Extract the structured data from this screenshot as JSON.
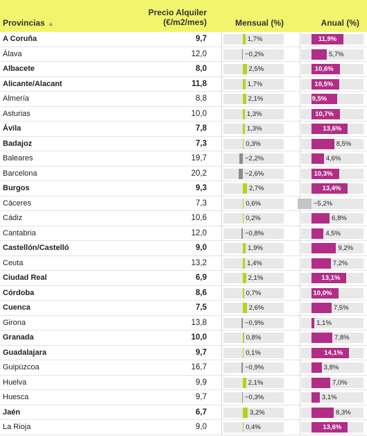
{
  "header": {
    "provinces": "Provincias",
    "sort_icon": "▲",
    "price_line1": "Precio Alquiler",
    "price_line2": "(€/m2/mes)",
    "monthly": "Mensual (%)",
    "annual": "Anual (%)"
  },
  "colors": {
    "header_bg": "#f2f56c",
    "monthly_positive": "#b7d21c",
    "monthly_negative": "#8c8c8c",
    "annual_positive": "#b22d86",
    "annual_negative": "#c4c4c4",
    "track": "#e8e8e8"
  },
  "chart_data": {
    "type": "table",
    "columns": [
      "Provincias",
      "Precio Alquiler (€/m2/mes)",
      "Mensual (%)",
      "Anual (%)"
    ],
    "rows": [
      {
        "province": "A Coruña",
        "price": "9,7",
        "monthly": 1.7,
        "monthly_label": "1,7%",
        "annual": 11.9,
        "annual_label": "11,9%",
        "bold": true
      },
      {
        "province": "Álava",
        "price": "12,0",
        "monthly": -0.2,
        "monthly_label": "−0,2%",
        "annual": 5.7,
        "annual_label": "5,7%",
        "bold": false
      },
      {
        "province": "Albacete",
        "price": "8,0",
        "monthly": 2.5,
        "monthly_label": "2,5%",
        "annual": 10.6,
        "annual_label": "10,6%",
        "bold": true
      },
      {
        "province": "Alicante/Alacant",
        "price": "11,8",
        "monthly": 1.7,
        "monthly_label": "1,7%",
        "annual": 10.5,
        "annual_label": "10,5%",
        "bold": true
      },
      {
        "province": "Almería",
        "price": "8,8",
        "monthly": 2.1,
        "monthly_label": "2,1%",
        "annual": 9.5,
        "annual_label": "9,5%",
        "bold": false
      },
      {
        "province": "Asturias",
        "price": "10,0",
        "monthly": 1.3,
        "monthly_label": "1,3%",
        "annual": 10.7,
        "annual_label": "10,7%",
        "bold": false
      },
      {
        "province": "Ávila",
        "price": "7,8",
        "monthly": 1.3,
        "monthly_label": "1,3%",
        "annual": 13.6,
        "annual_label": "13,6%",
        "bold": true
      },
      {
        "province": "Badajoz",
        "price": "7,3",
        "monthly": 0.3,
        "monthly_label": "0,3%",
        "annual": 8.5,
        "annual_label": "8,5%",
        "bold": true
      },
      {
        "province": "Baleares",
        "price": "19,7",
        "monthly": -2.2,
        "monthly_label": "−2,2%",
        "annual": 4.6,
        "annual_label": "4,6%",
        "bold": false
      },
      {
        "province": "Barcelona",
        "price": "20,2",
        "monthly": -2.6,
        "monthly_label": "−2,6%",
        "annual": 10.3,
        "annual_label": "10,3%",
        "bold": false
      },
      {
        "province": "Burgos",
        "price": "9,3",
        "monthly": 2.7,
        "monthly_label": "2,7%",
        "annual": 13.4,
        "annual_label": "13,4%",
        "bold": true
      },
      {
        "province": "Cáceres",
        "price": "7,3",
        "monthly": 0.6,
        "monthly_label": "0,6%",
        "annual": -5.2,
        "annual_label": "−5,2%",
        "bold": false
      },
      {
        "province": "Cádiz",
        "price": "10,6",
        "monthly": 0.2,
        "monthly_label": "0,2%",
        "annual": 6.8,
        "annual_label": "6,8%",
        "bold": false
      },
      {
        "province": "Cantabria",
        "price": "12,0",
        "monthly": -0.8,
        "monthly_label": "−0,8%",
        "annual": 4.5,
        "annual_label": "4,5%",
        "bold": false
      },
      {
        "province": "Castellón/Castelló",
        "price": "9,0",
        "monthly": 1.9,
        "monthly_label": "1,9%",
        "annual": 9.2,
        "annual_label": "9,2%",
        "bold": true
      },
      {
        "province": "Ceuta",
        "price": "13,2",
        "monthly": 1.4,
        "monthly_label": "1,4%",
        "annual": 7.2,
        "annual_label": "7,2%",
        "bold": false
      },
      {
        "province": "Ciudad Real",
        "price": "6,9",
        "monthly": 2.1,
        "monthly_label": "2,1%",
        "annual": 13.1,
        "annual_label": "13,1%",
        "bold": true
      },
      {
        "province": "Córdoba",
        "price": "8,6",
        "monthly": 0.7,
        "monthly_label": "0,7%",
        "annual": 10.0,
        "annual_label": "10,0%",
        "bold": true
      },
      {
        "province": "Cuenca",
        "price": "7,5",
        "monthly": 2.6,
        "monthly_label": "2,6%",
        "annual": 7.5,
        "annual_label": "7,5%",
        "bold": true
      },
      {
        "province": "Girona",
        "price": "13,8",
        "monthly": -0.9,
        "monthly_label": "−0,9%",
        "annual": 1.1,
        "annual_label": "1,1%",
        "bold": false
      },
      {
        "province": "Granada",
        "price": "10,0",
        "monthly": 0.8,
        "monthly_label": "0,8%",
        "annual": 7.8,
        "annual_label": "7,8%",
        "bold": true
      },
      {
        "province": "Guadalajara",
        "price": "9,7",
        "monthly": 0.1,
        "monthly_label": "0,1%",
        "annual": 14.1,
        "annual_label": "14,1%",
        "bold": true
      },
      {
        "province": "Guipúzcoa",
        "price": "16,7",
        "monthly": -0.9,
        "monthly_label": "−0,9%",
        "annual": 3.8,
        "annual_label": "3,8%",
        "bold": false
      },
      {
        "province": "Huelva",
        "price": "9,9",
        "monthly": 2.1,
        "monthly_label": "2,1%",
        "annual": 7.0,
        "annual_label": "7,0%",
        "bold": false
      },
      {
        "province": "Huesca",
        "price": "9,7",
        "monthly": -0.3,
        "monthly_label": "−0,3%",
        "annual": 3.1,
        "annual_label": "3,1%",
        "bold": false
      },
      {
        "province": "Jaén",
        "price": "6,7",
        "monthly": 3.2,
        "monthly_label": "3,2%",
        "annual": 8.3,
        "annual_label": "8,3%",
        "bold": true
      },
      {
        "province": "La Rioja",
        "price": "9,0",
        "monthly": 0.4,
        "monthly_label": "0,4%",
        "annual": 13.6,
        "annual_label": "13,6%",
        "bold": false
      }
    ]
  }
}
